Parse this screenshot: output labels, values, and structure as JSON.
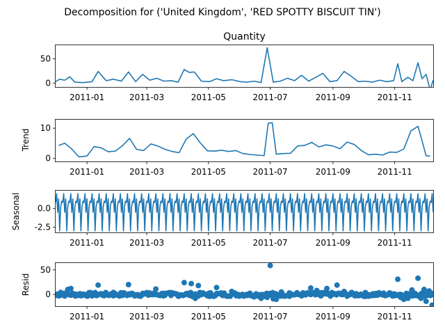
{
  "suptitle": "Decomposition for ('United Kingdom', 'RED SPOTTY BISCUIT TIN')",
  "colors": {
    "line": "#1f77b4",
    "axis": "#000000",
    "background": "#ffffff"
  },
  "chart_data": [
    {
      "type": "line",
      "panel": "observed",
      "title": "Quantity",
      "ylabel": "",
      "ylim": [
        -8,
        78
      ],
      "yticks": [
        0,
        50
      ],
      "xlim": [
        "2010-12-01",
        "2011-12-09"
      ],
      "xticks": [
        "2011-01",
        "2011-03",
        "2011-05",
        "2011-07",
        "2011-09",
        "2011-11"
      ],
      "x": [
        "2010-12-01",
        "2010-12-05",
        "2010-12-10",
        "2010-12-15",
        "2010-12-20",
        "2010-12-28",
        "2011-01-06",
        "2011-01-12",
        "2011-01-20",
        "2011-01-27",
        "2011-02-04",
        "2011-02-11",
        "2011-02-18",
        "2011-02-25",
        "2011-03-04",
        "2011-03-11",
        "2011-03-18",
        "2011-03-25",
        "2011-04-01",
        "2011-04-07",
        "2011-04-12",
        "2011-04-17",
        "2011-04-24",
        "2011-05-02",
        "2011-05-09",
        "2011-05-16",
        "2011-05-24",
        "2011-06-01",
        "2011-06-08",
        "2011-06-15",
        "2011-06-22",
        "2011-06-28",
        "2011-07-04",
        "2011-07-11",
        "2011-07-18",
        "2011-07-25",
        "2011-08-01",
        "2011-08-08",
        "2011-08-15",
        "2011-08-22",
        "2011-08-29",
        "2011-09-05",
        "2011-09-12",
        "2011-09-19",
        "2011-09-26",
        "2011-10-03",
        "2011-10-10",
        "2011-10-17",
        "2011-10-24",
        "2011-10-31",
        "2011-11-04",
        "2011-11-08",
        "2011-11-14",
        "2011-11-19",
        "2011-11-24",
        "2011-11-28",
        "2011-12-02",
        "2011-12-06",
        "2011-12-09"
      ],
      "values": [
        3,
        8,
        6,
        13,
        2,
        1,
        3,
        24,
        5,
        8,
        4,
        23,
        3,
        18,
        6,
        10,
        4,
        5,
        2,
        28,
        22,
        23,
        4,
        3,
        9,
        5,
        7,
        3,
        2,
        4,
        1,
        73,
        2,
        4,
        10,
        5,
        16,
        4,
        12,
        20,
        3,
        5,
        24,
        14,
        3,
        4,
        2,
        6,
        3,
        5,
        40,
        3,
        12,
        5,
        42,
        9,
        18,
        -14,
        6
      ]
    },
    {
      "type": "line",
      "panel": "trend",
      "title": "",
      "ylabel": "Trend",
      "ylim": [
        -1,
        12.8
      ],
      "yticks": [
        0,
        10
      ],
      "xlim": [
        "2010-12-01",
        "2011-12-09"
      ],
      "xticks": [
        "2011-01",
        "2011-03",
        "2011-05",
        "2011-07",
        "2011-09",
        "2011-11"
      ],
      "x": [
        "2010-12-04",
        "2010-12-10",
        "2010-12-17",
        "2010-12-24",
        "2011-01-01",
        "2011-01-08",
        "2011-01-15",
        "2011-01-22",
        "2011-01-29",
        "2011-02-05",
        "2011-02-12",
        "2011-02-19",
        "2011-02-26",
        "2011-03-05",
        "2011-03-12",
        "2011-03-19",
        "2011-03-26",
        "2011-04-02",
        "2011-04-09",
        "2011-04-16",
        "2011-04-23",
        "2011-04-30",
        "2011-05-07",
        "2011-05-14",
        "2011-05-21",
        "2011-05-28",
        "2011-06-04",
        "2011-06-11",
        "2011-06-18",
        "2011-06-25",
        "2011-06-29",
        "2011-07-03",
        "2011-07-07",
        "2011-07-14",
        "2011-07-21",
        "2011-07-28",
        "2011-08-04",
        "2011-08-11",
        "2011-08-18",
        "2011-08-25",
        "2011-09-01",
        "2011-09-08",
        "2011-09-15",
        "2011-09-22",
        "2011-09-29",
        "2011-10-06",
        "2011-10-13",
        "2011-10-20",
        "2011-10-27",
        "2011-11-03",
        "2011-11-10",
        "2011-11-17",
        "2011-11-24",
        "2011-11-28",
        "2011-12-02",
        "2011-12-06"
      ],
      "values": [
        4.3,
        5,
        3.1,
        0.5,
        0.8,
        3.9,
        3.5,
        2.2,
        2.4,
        4.2,
        6.6,
        3,
        2.6,
        4.8,
        4.1,
        3,
        2.3,
        1.9,
        6.4,
        8.2,
        5.1,
        2.5,
        2.4,
        2.7,
        2.3,
        2.6,
        1.6,
        1.3,
        1.1,
        0.9,
        11.6,
        11.8,
        1.4,
        1.6,
        1.7,
        4.1,
        4.3,
        5.3,
        3.8,
        4.5,
        4.1,
        3.2,
        5.4,
        4.6,
        2.6,
        1.2,
        1.4,
        1.1,
        2.1,
        2,
        3.1,
        9.1,
        10.6,
        5.8,
        0.9,
        0.8
      ]
    },
    {
      "type": "line",
      "panel": "seasonal",
      "title": "",
      "ylabel": "Seasonal",
      "ylim": [
        -3.2,
        2.4
      ],
      "yticks": [
        0.0,
        -2.5
      ],
      "xlim": [
        "2010-12-01",
        "2011-12-09"
      ],
      "xticks": [
        "2011-01",
        "2011-03",
        "2011-05",
        "2011-07",
        "2011-09",
        "2011-11"
      ],
      "period_days": 7,
      "pattern": [
        0.8,
        2.0,
        -0.5,
        1.3,
        -3.0,
        0.2,
        1.0
      ]
    },
    {
      "type": "scatter",
      "panel": "resid",
      "title": "",
      "ylabel": "Resid",
      "ylim": [
        -24,
        64
      ],
      "yticks": [
        0,
        50
      ],
      "xlim": [
        "2010-12-01",
        "2011-12-09"
      ],
      "xticks": [
        "2011-01",
        "2011-03",
        "2011-05",
        "2011-07",
        "2011-09",
        "2011-11"
      ],
      "x": [
        "2010-12-02",
        "2010-12-06",
        "2010-12-09",
        "2010-12-13",
        "2010-12-16",
        "2010-12-21",
        "2011-01-05",
        "2011-01-12",
        "2011-01-19",
        "2011-01-27",
        "2011-02-04",
        "2011-02-11",
        "2011-02-18",
        "2011-02-25",
        "2011-03-04",
        "2011-03-10",
        "2011-03-18",
        "2011-03-25",
        "2011-04-01",
        "2011-04-07",
        "2011-04-11",
        "2011-04-14",
        "2011-04-18",
        "2011-04-21",
        "2011-05-02",
        "2011-05-09",
        "2011-05-16",
        "2011-05-24",
        "2011-06-01",
        "2011-06-08",
        "2011-06-15",
        "2011-06-22",
        "2011-06-28",
        "2011-07-01",
        "2011-07-04",
        "2011-07-07",
        "2011-07-12",
        "2011-07-20",
        "2011-07-28",
        "2011-08-05",
        "2011-08-10",
        "2011-08-16",
        "2011-08-20",
        "2011-08-26",
        "2011-09-01",
        "2011-09-05",
        "2011-09-12",
        "2011-09-19",
        "2011-09-26",
        "2011-10-03",
        "2011-10-10",
        "2011-10-17",
        "2011-10-24",
        "2011-10-31",
        "2011-11-04",
        "2011-11-07",
        "2011-11-10",
        "2011-11-14",
        "2011-11-18",
        "2011-11-21",
        "2011-11-24",
        "2011-11-27",
        "2011-11-30",
        "2011-12-02",
        "2011-12-05",
        "2011-12-08"
      ],
      "values": [
        -2,
        4,
        2,
        10,
        12,
        -1,
        2,
        19,
        2,
        4,
        1,
        20,
        -2,
        2,
        3,
        11,
        2,
        -2,
        -3,
        24,
        0,
        22,
        -8,
        18,
        -4,
        14,
        0,
        6,
        -3,
        0,
        -5,
        -8,
        -6,
        59,
        -9,
        -10,
        5,
        3,
        0,
        -1,
        13,
        8,
        -3,
        12,
        2,
        19,
        6,
        3,
        -2,
        -4,
        0,
        2,
        -1,
        1,
        31,
        -6,
        -10,
        -8,
        9,
        2,
        33,
        -8,
        10,
        -14,
        7,
        -22
      ]
    }
  ]
}
